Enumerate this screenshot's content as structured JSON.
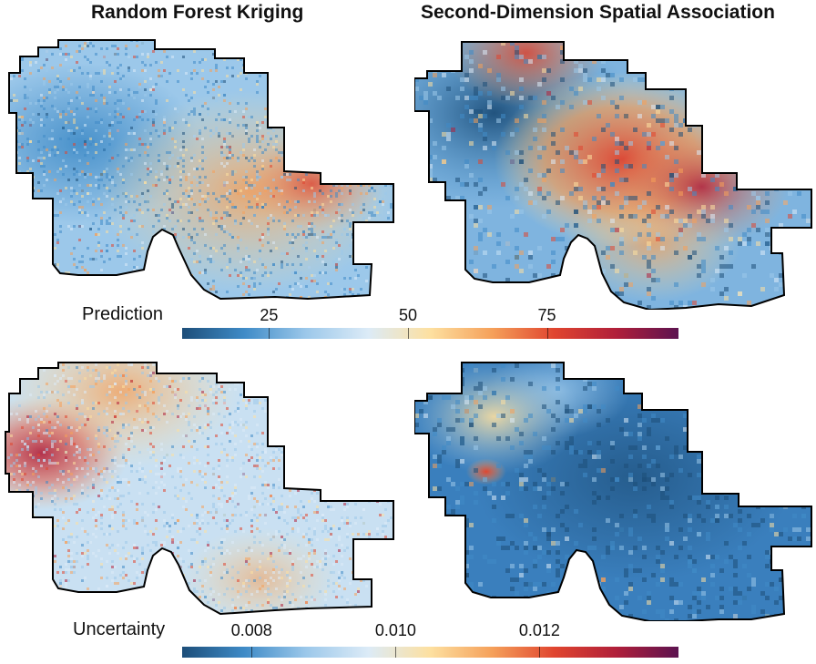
{
  "titles": {
    "left": "Random Forest Kriging",
    "right": "Second-Dimension Spatial Association"
  },
  "prediction_colorbar": {
    "label": "Prediction",
    "ticks": [
      {
        "label": "25",
        "fraction": 0.175
      },
      {
        "label": "50",
        "fraction": 0.455
      },
      {
        "label": "75",
        "fraction": 0.735
      }
    ]
  },
  "uncertainty_colorbar": {
    "label": "Uncertainty",
    "ticks": [
      {
        "label": "0.008",
        "fraction": 0.14
      },
      {
        "label": "0.010",
        "fraction": 0.43
      },
      {
        "label": "0.012",
        "fraction": 0.72
      }
    ]
  },
  "colors": {
    "scale": [
      "#1d4e79",
      "#3f8bc7",
      "#9cc8ea",
      "#dcebf7",
      "#fde0a0",
      "#f5a05a",
      "#e0452f",
      "#b01f3a",
      "#5c1350"
    ],
    "outline": "#000000"
  },
  "chart_data": {
    "type": "heatmap",
    "panels": [
      {
        "name": "prediction-random-forest-kriging",
        "row": "Prediction",
        "column": "Random Forest Kriging"
      },
      {
        "name": "prediction-second-dimension",
        "row": "Prediction",
        "column": "Second-Dimension Spatial Association"
      },
      {
        "name": "uncertainty-random-forest-kriging",
        "row": "Uncertainty",
        "column": "Random Forest Kriging"
      },
      {
        "name": "uncertainty-second-dimension",
        "row": "Uncertainty",
        "column": "Second-Dimension Spatial Association"
      }
    ]
  }
}
